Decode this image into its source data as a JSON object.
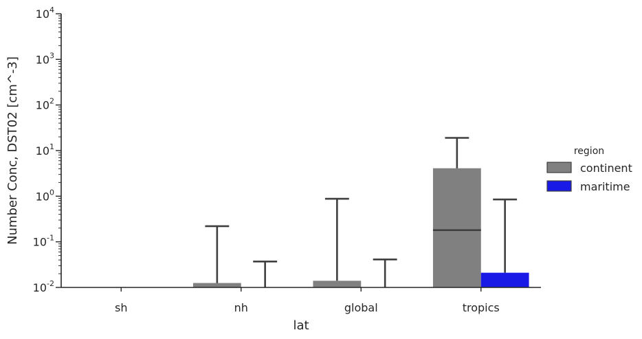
{
  "chart_data": {
    "type": "bar",
    "xlabel": "lat",
    "ylabel": "Number Conc, DST02 [cm^-3]",
    "yscale": "log",
    "ylim": [
      0.01,
      10000
    ],
    "yticks": [
      {
        "value": 0.01,
        "base": "10",
        "exp": "-2"
      },
      {
        "value": 0.1,
        "base": "10",
        "exp": "-1"
      },
      {
        "value": 1,
        "base": "10",
        "exp": "0"
      },
      {
        "value": 10,
        "base": "10",
        "exp": "1"
      },
      {
        "value": 100,
        "base": "10",
        "exp": "2"
      },
      {
        "value": 1000,
        "base": "10",
        "exp": "3"
      },
      {
        "value": 10000,
        "base": "10",
        "exp": "4"
      }
    ],
    "categories": [
      "sh",
      "nh",
      "global",
      "tropics"
    ],
    "legend": {
      "title": "region",
      "position": "right"
    },
    "series": [
      {
        "name": "continent",
        "color": "#808080",
        "values": [
          null,
          0.0125,
          0.014,
          4.1
        ],
        "median": [
          null,
          null,
          null,
          0.18
        ],
        "whisker_high": [
          null,
          0.22,
          0.88,
          19
        ]
      },
      {
        "name": "maritime",
        "color": "#1a1ae6",
        "values": [
          null,
          null,
          null,
          0.021
        ],
        "median": [
          null,
          null,
          null,
          null
        ],
        "whisker_high": [
          null,
          0.037,
          0.041,
          0.85
        ]
      }
    ]
  }
}
